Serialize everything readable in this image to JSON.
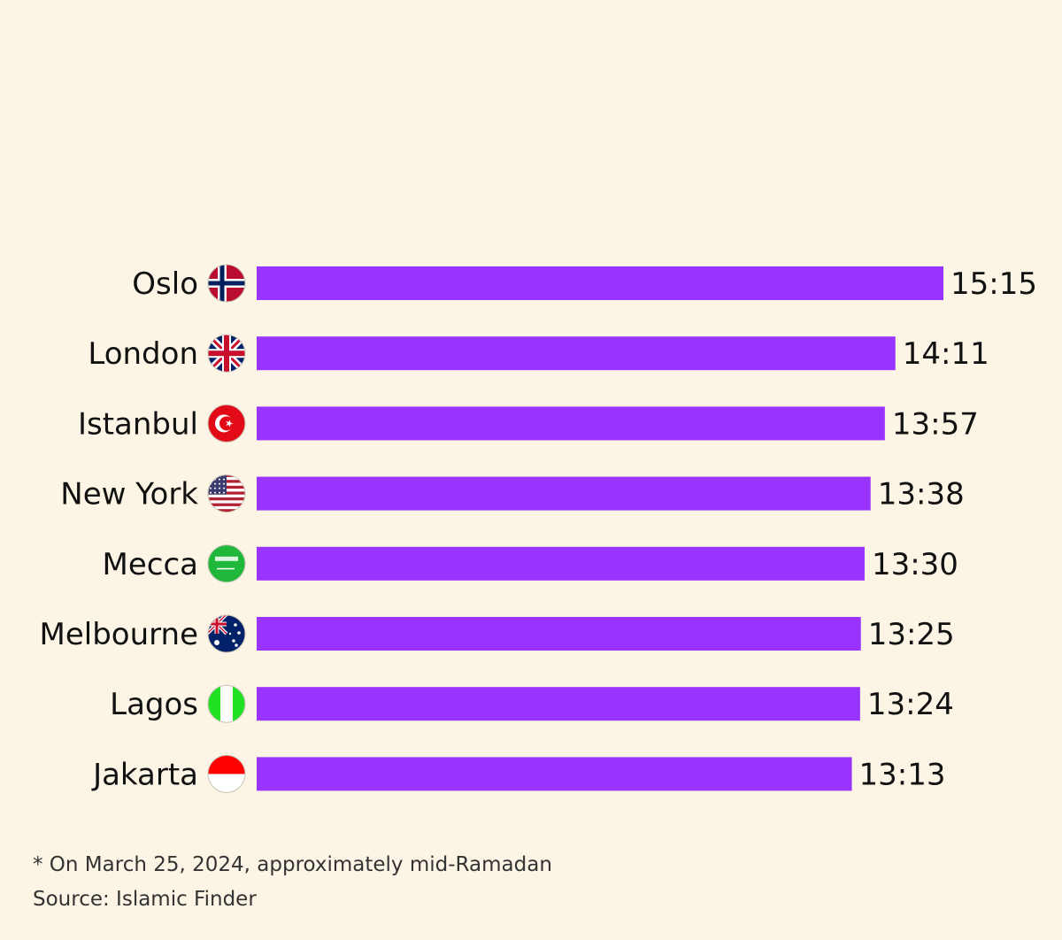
{
  "chart_data": {
    "type": "bar",
    "orientation": "horizontal",
    "categories": [
      "Oslo",
      "London",
      "Istanbul",
      "New York",
      "Mecca",
      "Melbourne",
      "Lagos",
      "Jakarta"
    ],
    "flags": [
      "norway-flag-icon",
      "uk-flag-icon",
      "turkey-flag-icon",
      "usa-flag-icon",
      "saudi-arabia-flag-icon",
      "australia-flag-icon",
      "nigeria-flag-icon",
      "indonesia-flag-icon"
    ],
    "value_labels": [
      "15:15",
      "14:11",
      "13:57",
      "13:38",
      "13:30",
      "13:25",
      "13:24",
      "13:13"
    ],
    "values_minutes": [
      915,
      851,
      837,
      818,
      810,
      805,
      804,
      793
    ],
    "bar_color": "#9933ff",
    "title": "",
    "xlabel": "",
    "ylabel": "",
    "grid": false,
    "legend": "none"
  },
  "footnote": "* On March 25, 2024, approximately mid-Ramadan",
  "source": "Source: Islamic Finder",
  "colors": {
    "background": "#fcf5e5",
    "bar": "#9933ff"
  }
}
